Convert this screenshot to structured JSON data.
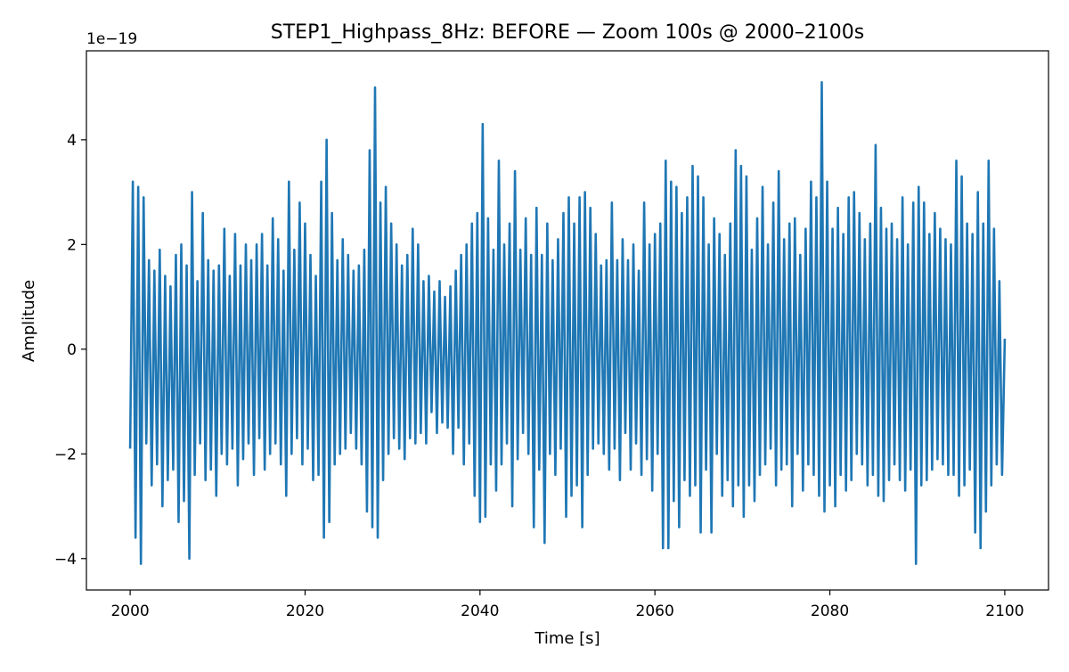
{
  "chart_data": {
    "type": "line",
    "title": "STEP1_Highpass_8Hz: BEFORE — Zoom 100s @ 2000–2100s",
    "xlabel": "Time [s]",
    "ylabel": "Amplitude",
    "y_scale_label": "1e−19",
    "xlim": [
      1995,
      2105
    ],
    "ylim": [
      -4.6,
      5.7
    ],
    "x_ticks": [
      2000,
      2020,
      2040,
      2060,
      2080,
      2100
    ],
    "y_ticks": [
      -4,
      -2,
      0,
      2,
      4
    ],
    "y_tick_labels": [
      "−4",
      "−2",
      "0",
      "2",
      "4"
    ],
    "grid": false,
    "series": [
      {
        "color": "#1f77b4",
        "x_start": 2000,
        "x_end": 2100,
        "values": [
          -1.9,
          3.2,
          -3.6,
          3.1,
          -4.1,
          2.9,
          -1.8,
          1.7,
          -2.6,
          1.5,
          -2.2,
          1.9,
          -3.0,
          1.4,
          -2.5,
          1.2,
          -2.3,
          1.8,
          -3.3,
          2.0,
          -2.9,
          1.6,
          -4.0,
          3.0,
          -2.4,
          1.3,
          -1.8,
          2.6,
          -2.5,
          1.7,
          -2.3,
          1.5,
          -2.8,
          1.6,
          -2.0,
          2.3,
          -2.2,
          1.4,
          -1.9,
          2.2,
          -2.6,
          1.6,
          -2.1,
          2.0,
          -1.8,
          1.7,
          -2.4,
          2.0,
          -1.7,
          2.2,
          -2.3,
          1.6,
          -2.0,
          2.5,
          -1.8,
          2.1,
          -2.2,
          1.5,
          -2.8,
          3.2,
          -2.0,
          1.9,
          -1.7,
          2.8,
          -2.2,
          2.4,
          -1.9,
          1.8,
          -2.5,
          1.4,
          -2.4,
          3.2,
          -3.6,
          4.0,
          -3.3,
          2.6,
          -2.2,
          1.7,
          -2.0,
          2.1,
          -1.9,
          1.8,
          -1.6,
          1.5,
          -1.9,
          1.6,
          -2.2,
          1.9,
          -3.1,
          3.8,
          -3.4,
          5.0,
          -3.6,
          2.8,
          -2.5,
          3.1,
          -2.0,
          2.4,
          -1.7,
          2.0,
          -1.9,
          1.6,
          -2.1,
          1.8,
          -1.7,
          2.3,
          -1.8,
          2.0,
          -1.6,
          1.3,
          -1.8,
          1.4,
          -1.2,
          1.1,
          -1.6,
          1.3,
          -1.4,
          1.0,
          -1.5,
          1.2,
          -2.0,
          1.5,
          -1.5,
          1.8,
          -2.2,
          2.0,
          -1.8,
          2.4,
          -2.8,
          2.6,
          -3.3,
          4.3,
          -3.2,
          2.5,
          -2.2,
          1.9,
          -2.7,
          3.6,
          -2.2,
          2.0,
          -1.8,
          2.4,
          -3.0,
          3.4,
          -2.1,
          1.9,
          -1.6,
          2.5,
          -2.0,
          1.8,
          -3.4,
          2.7,
          -2.3,
          1.8,
          -3.7,
          2.4,
          -2.0,
          1.7,
          -2.4,
          2.1,
          -1.9,
          2.6,
          -3.2,
          2.9,
          -2.8,
          2.4,
          -2.6,
          2.9,
          -3.4,
          3.0,
          -2.4,
          2.7,
          -1.9,
          2.2,
          -1.8,
          1.6,
          -2.0,
          1.7,
          -2.3,
          2.8,
          -1.9,
          1.7,
          -2.5,
          2.1,
          -1.6,
          1.7,
          -2.3,
          2.0,
          -1.8,
          1.5,
          -2.4,
          2.8,
          -2.1,
          2.0,
          -2.7,
          2.2,
          -2.0,
          2.4,
          -3.8,
          3.6,
          -3.8,
          3.2,
          -2.9,
          3.1,
          -3.4,
          2.6,
          -2.5,
          2.9,
          -2.8,
          3.5,
          -2.6,
          3.3,
          -3.5,
          2.9,
          -2.3,
          2.0,
          -3.5,
          2.5,
          -2.0,
          2.2,
          -2.8,
          1.8,
          -2.5,
          2.4,
          -3.0,
          3.8,
          -2.6,
          3.5,
          -3.2,
          3.3,
          -2.6,
          1.9,
          -2.9,
          2.5,
          -2.4,
          3.1,
          -2.2,
          2.0,
          -1.9,
          2.8,
          -2.6,
          3.4,
          -2.3,
          2.1,
          -2.2,
          2.4,
          -3.0,
          2.5,
          -2.0,
          1.8,
          -2.7,
          2.3,
          -2.2,
          3.2,
          -2.4,
          2.9,
          -2.8,
          5.1,
          -3.1,
          3.2,
          -2.6,
          2.3,
          -3.0,
          2.7,
          -2.4,
          2.2,
          -2.7,
          2.9,
          -2.5,
          3.0,
          -2.0,
          2.6,
          -2.2,
          2.1,
          -2.6,
          2.4,
          -2.4,
          3.9,
          -2.8,
          2.7,
          -2.9,
          2.3,
          -2.5,
          2.4,
          -2.2,
          2.1,
          -2.5,
          2.9,
          -2.7,
          2.0,
          -2.3,
          2.8,
          -4.1,
          3.1,
          -2.6,
          2.8,
          -2.5,
          2.2,
          -2.3,
          2.6,
          -2.1,
          2.3,
          -2.2,
          2.1,
          -2.4,
          2.0,
          -2.4,
          3.6,
          -2.8,
          3.3,
          -2.6,
          2.4,
          -2.3,
          2.2,
          -3.5,
          3.0,
          -3.8,
          2.4,
          -3.1,
          3.6,
          -2.6,
          2.3,
          -2.2,
          1.3,
          -2.4,
          0.2
        ]
      }
    ]
  }
}
